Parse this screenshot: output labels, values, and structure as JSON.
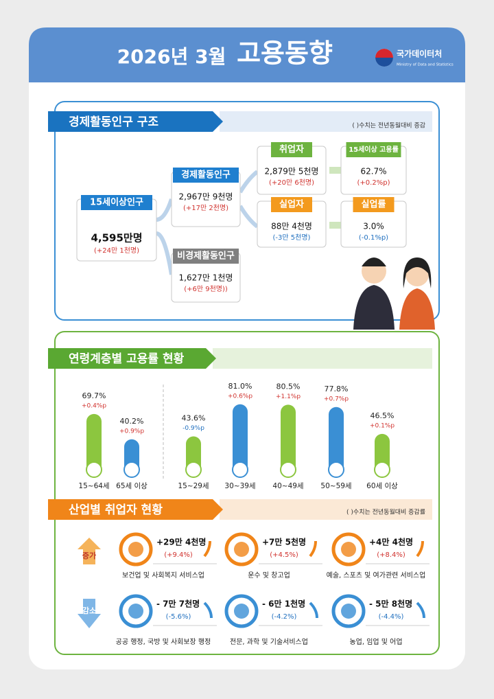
{
  "header": {
    "date": "2026년 3월",
    "title": "고용동향",
    "agency": "국가데이터처",
    "agency_en": "Ministry of Data and Statistics"
  },
  "structure": {
    "title": "경제활동인구 구조",
    "note": "( )수치는 전년동월대비 증감",
    "nodes": [
      {
        "label": "15세이상인구",
        "value": "4,595만명",
        "change": "(+24만 1천명)",
        "color": "#1f7fcf"
      },
      {
        "label": "경제활동인구",
        "value": "2,967만 9천명",
        "change": "(+17만 2천명)",
        "color": "#1f7fcf"
      },
      {
        "label": "비경제활동인구",
        "value": "1,627만 1천명",
        "change": "(+6만 9천명))",
        "color": "#7f7f7f"
      },
      {
        "label": "취업자",
        "value": "2,879만 5천명",
        "change": "(+20만 6천명)",
        "color": "#6db33f"
      },
      {
        "label": "실업자",
        "value": "88만 4천명",
        "change": "(-3만 5천명)",
        "color": "#f39a1e"
      },
      {
        "label": "15세이상 고용률",
        "value": "62.7%",
        "change": "(+0.2%p)",
        "color": "#6db33f"
      },
      {
        "label": "실업률",
        "value": "3.0%",
        "change": "(-0.1%p)",
        "color": "#f39a1e"
      }
    ]
  },
  "age": {
    "title": "연령계층별 고용률 현황",
    "groups": [
      {
        "label": "15~64세",
        "value": 69.7,
        "value_label": "69.7%",
        "change": "+0.4%p",
        "color": "#8cc63f"
      },
      {
        "label": "65세 이상",
        "value": 40.2,
        "value_label": "40.2%",
        "change": "+0.9%p",
        "color": "#3a8fd4"
      },
      {
        "label": "15~29세",
        "value": 43.6,
        "value_label": "43.6%",
        "change": "-0.9%p",
        "color": "#8cc63f"
      },
      {
        "label": "30~39세",
        "value": 81.0,
        "value_label": "81.0%",
        "change": "+0.6%p",
        "color": "#3a8fd4"
      },
      {
        "label": "40~49세",
        "value": 80.5,
        "value_label": "80.5%",
        "change": "+1.1%p",
        "color": "#8cc63f"
      },
      {
        "label": "50~59세",
        "value": 77.8,
        "value_label": "77.8%",
        "change": "+0.7%p",
        "color": "#3a8fd4"
      },
      {
        "label": "60세 이상",
        "value": 46.5,
        "value_label": "46.5%",
        "change": "+0.1%p",
        "color": "#8cc63f"
      }
    ]
  },
  "industry": {
    "title": "산업별 취업자 현황",
    "note": "( )수치는 전년동월대비 증감률",
    "increase_label": "증가",
    "decrease_label": "감소",
    "increase": [
      {
        "name": "보건업 및 사회복지 서비스업",
        "change": "+29만 4천명",
        "rate": "(+9.4%)"
      },
      {
        "name": "운수 및 창고업",
        "change": "+7만 5천명",
        "rate": "(+4.5%)"
      },
      {
        "name": "예술, 스포츠 및 여가관련 서비스업",
        "change": "+4만 4천명",
        "rate": "(+8.4%)"
      }
    ],
    "decrease": [
      {
        "name": "공공 행정, 국방 및 사회보장 행정",
        "change": "- 7만 7천명",
        "rate": "(-5.6%)"
      },
      {
        "name": "전문, 과학 및 기술서비스업",
        "change": "- 6만 1천명",
        "rate": "(-4.2%)"
      },
      {
        "name": "농업, 임업 및 어업",
        "change": "- 5만 8천명",
        "rate": "(-4.4%)"
      }
    ]
  }
}
